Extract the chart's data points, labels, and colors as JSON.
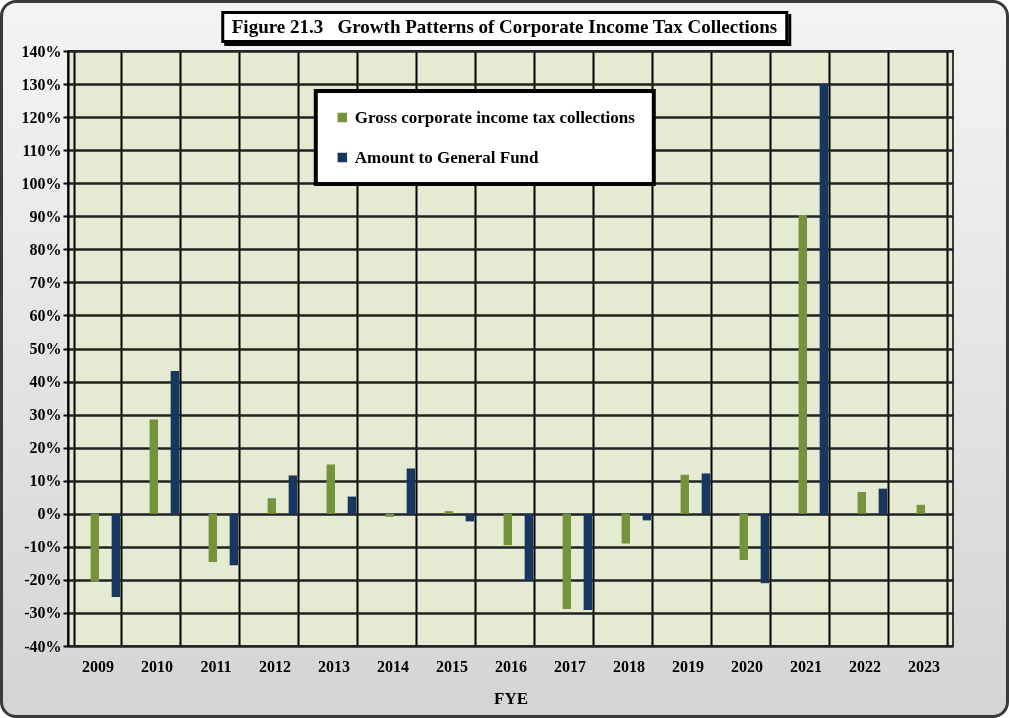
{
  "chart_data": {
    "type": "bar",
    "title": "Figure 21.3   Growth Patterns of Corporate Income Tax Collections",
    "xlabel": "FYE",
    "categories": [
      "2009",
      "2010",
      "2011",
      "2012",
      "2013",
      "2014",
      "2015",
      "2016",
      "2017",
      "2018",
      "2019",
      "2020",
      "2021",
      "2022",
      "2023"
    ],
    "series": [
      {
        "name": "Gross corporate income tax collections",
        "color": "#76923c",
        "values": [
          -20.6,
          28.5,
          -14.6,
          4.7,
          14.9,
          -0.9,
          0.8,
          -9.5,
          -28.8,
          -9.0,
          11.8,
          -14.0,
          90.4,
          6.6,
          2.7
        ]
      },
      {
        "name": "Amount to General Fund",
        "color": "#17375e",
        "values": [
          -25.2,
          43.2,
          -15.6,
          11.6,
          5.2,
          13.7,
          -2.3,
          -20.2,
          -29.1,
          -2.0,
          12.2,
          -21.0,
          130.0,
          7.6,
          null
        ]
      }
    ],
    "ylim": [
      -40,
      140
    ],
    "yticks": [
      {
        "value": -40,
        "label": "-40%"
      },
      {
        "value": -30,
        "label": "-30%"
      },
      {
        "value": -20,
        "label": "-20%"
      },
      {
        "value": -10,
        "label": "-10%"
      },
      {
        "value": 0,
        "label": "0%"
      },
      {
        "value": 10,
        "label": "10%"
      },
      {
        "value": 20,
        "label": "20%"
      },
      {
        "value": 30,
        "label": "30%"
      },
      {
        "value": 40,
        "label": "40%"
      },
      {
        "value": 50,
        "label": "50%"
      },
      {
        "value": 60,
        "label": "60%"
      },
      {
        "value": 70,
        "label": "70%"
      },
      {
        "value": 80,
        "label": "80%"
      },
      {
        "value": 90,
        "label": "90%"
      },
      {
        "value": 100,
        "label": "100%"
      },
      {
        "value": 110,
        "label": "110%"
      },
      {
        "value": 120,
        "label": "120%"
      },
      {
        "value": 130,
        "label": "130%"
      },
      {
        "value": 140,
        "label": "140%"
      }
    ],
    "grid": true,
    "legend": "top"
  }
}
